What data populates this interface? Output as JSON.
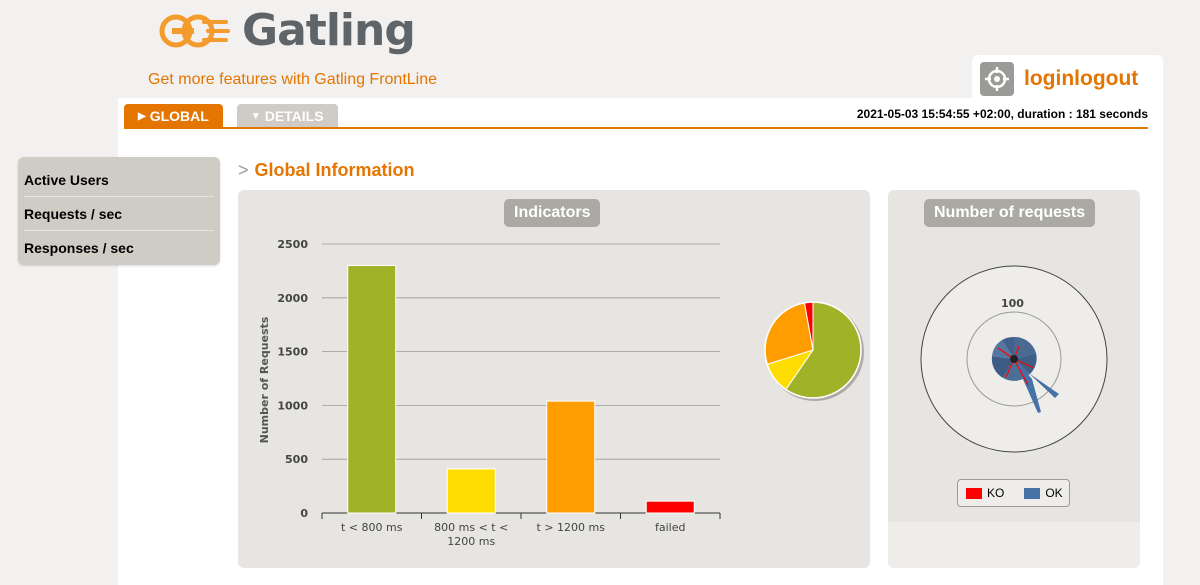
{
  "header": {
    "logo_text": "Gatling",
    "frontline_link": "Get more features with Gatling FrontLine",
    "simulation_name": "loginlogout"
  },
  "tabs": [
    {
      "label": "GLOBAL"
    },
    {
      "label": "DETAILS"
    }
  ],
  "run_info": "2021-05-03 15:54:55 +02:00, duration : 181 seconds",
  "menu": {
    "items": [
      "Active Users",
      "Requests / sec",
      "Responses / sec"
    ]
  },
  "section_title": "Global Information",
  "indicators": {
    "title": "Indicators",
    "ylabel": "Number of Requests"
  },
  "requests": {
    "title": "Number of requests",
    "ring_label": "100",
    "legend": [
      {
        "label": "KO",
        "color": "#ff0000"
      },
      {
        "label": "OK",
        "color": "#4572a7"
      }
    ]
  },
  "colors": {
    "accent": "#e37500",
    "green": "#a0b228",
    "yellow": "#ffdd00",
    "orange": "#ff9d00",
    "red": "#ff0000"
  },
  "chart_data": [
    {
      "type": "bar",
      "title": "Indicators",
      "ylabel": "Number of Requests",
      "xlabel": "",
      "categories": [
        "t < 800 ms",
        "800 ms < t < 1200 ms",
        "t > 1200 ms",
        "failed"
      ],
      "category_lines": [
        [
          "t < 800 ms"
        ],
        [
          "800 ms < t <",
          "1200 ms"
        ],
        [
          "t > 1200 ms"
        ],
        [
          "failed"
        ]
      ],
      "values": [
        2300,
        410,
        1040,
        110
      ],
      "colors": [
        "#a0b228",
        "#ffdd00",
        "#ff9d00",
        "#ff0000"
      ],
      "ylim": [
        0,
        2500
      ],
      "yticks": [
        0,
        500,
        1000,
        1500,
        2000,
        2500
      ],
      "grid": true
    },
    {
      "type": "pie",
      "labels": [
        "t < 800 ms",
        "800 ms < t < 1200 ms",
        "t > 1200 ms",
        "failed"
      ],
      "values": [
        2300,
        410,
        1040,
        110
      ],
      "colors": [
        "#a0b228",
        "#ffdd00",
        "#ff9d00",
        "#ff0000"
      ]
    }
  ]
}
